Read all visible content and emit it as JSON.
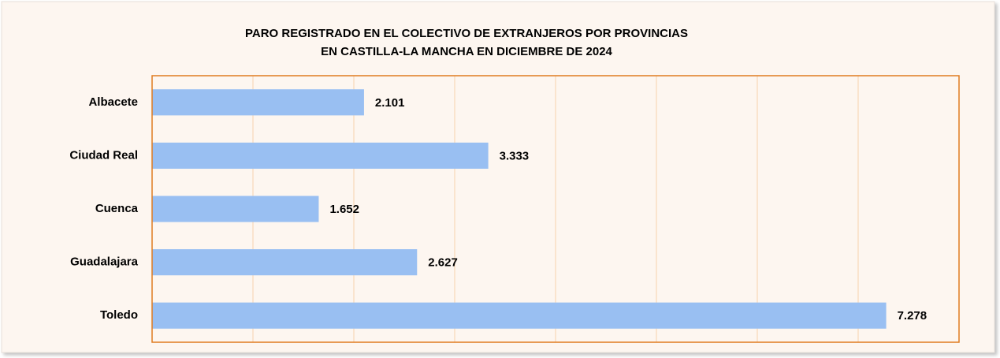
{
  "chart_data": {
    "type": "bar",
    "orientation": "horizontal",
    "title": [
      "PARO REGISTRADO EN EL COLECTIVO DE EXTRANJEROS POR PROVINCIAS",
      "EN CASTILLA-LA MANCHA EN  DICIEMBRE DE 2024"
    ],
    "categories": [
      "Albacete",
      "Ciudad Real",
      "Cuenca",
      "Guadalajara",
      "Toledo"
    ],
    "values": [
      2101,
      3333,
      1652,
      2627,
      7278
    ],
    "value_labels": [
      "2.101",
      "3.333",
      "1.652",
      "2.627",
      "7.278"
    ],
    "color": "#99bff2",
    "xlim": [
      0,
      8000
    ],
    "xticks": [
      0,
      1000,
      2000,
      3000,
      4000,
      5000,
      6000,
      7000,
      8000
    ],
    "grid": true
  }
}
